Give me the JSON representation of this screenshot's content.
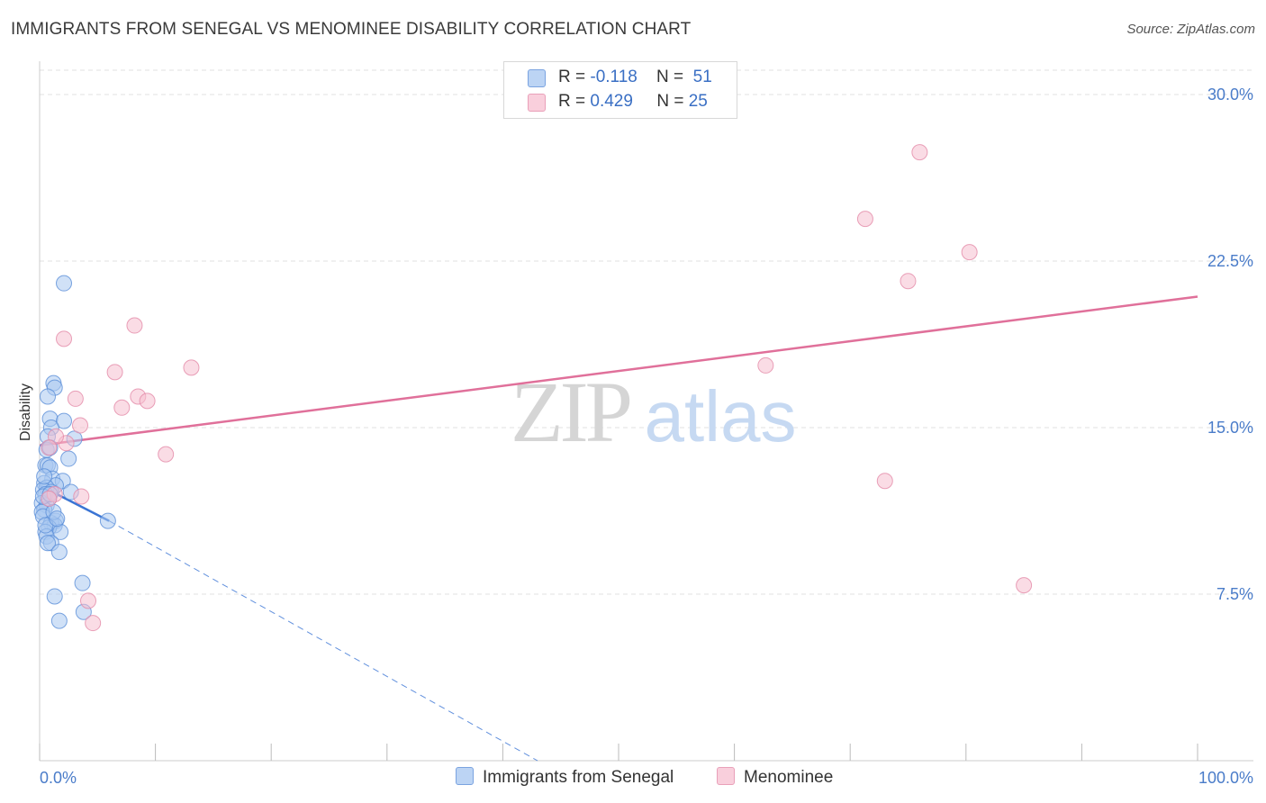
{
  "title": "IMMIGRANTS FROM SENEGAL VS MENOMINEE DISABILITY CORRELATION CHART",
  "source": "Source: ZipAtlas.com",
  "watermark": {
    "zip": "ZIP",
    "atlas": "atlas"
  },
  "colors": {
    "blue_fill": "#aac8f0",
    "blue_stroke": "#5b8fd8",
    "blue_line": "#3a74d4",
    "pink_fill": "#f6bfd0",
    "pink_stroke": "#e48aa8",
    "pink_line": "#e0709a",
    "tick_text": "#4a7cc9"
  },
  "legend": {
    "rows": [
      {
        "r_label": "R = ",
        "r_value": "-0.118",
        "n_label": "N = ",
        "n_value": "51"
      },
      {
        "r_label": "R = ",
        "r_value": "0.429",
        "n_label": "N = ",
        "n_value": "25"
      }
    ]
  },
  "bottom_legend": [
    "Immigrants from Senegal",
    "Menominee"
  ],
  "chart_data": {
    "type": "scatter",
    "ylabel": "Disability",
    "xlim": [
      0,
      100
    ],
    "ylim": [
      0,
      31.5
    ],
    "y_ticks": [
      7.5,
      15.0,
      22.5,
      30.0
    ],
    "y_tick_labels": [
      "7.5%",
      "15.0%",
      "22.5%",
      "30.0%"
    ],
    "x_tick_labels": [
      "0.0%",
      "100.0%"
    ],
    "grid": true,
    "legend_placement": "top-center",
    "series": [
      {
        "name": "Immigrants from Senegal",
        "color": "blue",
        "points": [
          [
            2.1,
            21.5
          ],
          [
            1.2,
            17.0
          ],
          [
            1.3,
            16.8
          ],
          [
            0.7,
            16.4
          ],
          [
            0.9,
            15.4
          ],
          [
            2.1,
            15.3
          ],
          [
            1.0,
            15.0
          ],
          [
            0.7,
            14.6
          ],
          [
            3.0,
            14.5
          ],
          [
            0.6,
            14.0
          ],
          [
            0.9,
            14.1
          ],
          [
            2.5,
            13.6
          ],
          [
            0.5,
            13.3
          ],
          [
            0.7,
            13.3
          ],
          [
            0.9,
            13.2
          ],
          [
            1.1,
            12.7
          ],
          [
            2.0,
            12.6
          ],
          [
            0.4,
            12.5
          ],
          [
            1.4,
            12.4
          ],
          [
            0.6,
            12.3
          ],
          [
            0.3,
            12.2
          ],
          [
            1.0,
            12.1
          ],
          [
            2.7,
            12.1
          ],
          [
            0.5,
            12.0
          ],
          [
            0.8,
            11.8
          ],
          [
            0.2,
            11.6
          ],
          [
            0.6,
            11.5
          ],
          [
            0.4,
            11.3
          ],
          [
            0.2,
            11.2
          ],
          [
            0.3,
            11.0
          ],
          [
            1.4,
            10.8
          ],
          [
            1.0,
            10.7
          ],
          [
            1.3,
            10.6
          ],
          [
            0.8,
            10.5
          ],
          [
            0.5,
            10.3
          ],
          [
            1.8,
            10.3
          ],
          [
            0.6,
            10.1
          ],
          [
            1.0,
            9.8
          ],
          [
            0.7,
            9.8
          ],
          [
            1.7,
            9.4
          ],
          [
            5.9,
            10.8
          ],
          [
            3.7,
            8.0
          ],
          [
            1.3,
            7.4
          ],
          [
            3.8,
            6.7
          ],
          [
            1.7,
            6.3
          ],
          [
            0.3,
            11.9
          ],
          [
            0.9,
            12.0
          ],
          [
            0.5,
            10.6
          ],
          [
            1.2,
            11.2
          ],
          [
            0.4,
            12.8
          ],
          [
            1.5,
            10.9
          ]
        ],
        "trend_solid": {
          "x": [
            0,
            6
          ],
          "y": [
            12.4,
            10.8
          ]
        },
        "trend_dashed": {
          "x": [
            6,
            43
          ],
          "y": [
            10.8,
            0
          ]
        }
      },
      {
        "name": "Menominee",
        "color": "pink",
        "points": [
          [
            76.0,
            27.4
          ],
          [
            71.3,
            24.4
          ],
          [
            80.3,
            22.9
          ],
          [
            75.0,
            21.6
          ],
          [
            2.1,
            19.0
          ],
          [
            8.2,
            19.6
          ],
          [
            6.5,
            17.5
          ],
          [
            13.1,
            17.7
          ],
          [
            62.7,
            17.8
          ],
          [
            3.1,
            16.3
          ],
          [
            8.5,
            16.4
          ],
          [
            7.1,
            15.9
          ],
          [
            9.3,
            16.2
          ],
          [
            3.5,
            15.1
          ],
          [
            2.3,
            14.3
          ],
          [
            1.4,
            14.6
          ],
          [
            10.9,
            13.8
          ],
          [
            0.8,
            14.1
          ],
          [
            73.0,
            12.6
          ],
          [
            1.3,
            12.0
          ],
          [
            0.8,
            11.8
          ],
          [
            3.6,
            11.9
          ],
          [
            85.0,
            7.9
          ],
          [
            4.2,
            7.2
          ],
          [
            4.6,
            6.2
          ]
        ],
        "trend_solid": {
          "x": [
            0,
            100
          ],
          "y": [
            14.2,
            20.9
          ]
        }
      }
    ]
  }
}
